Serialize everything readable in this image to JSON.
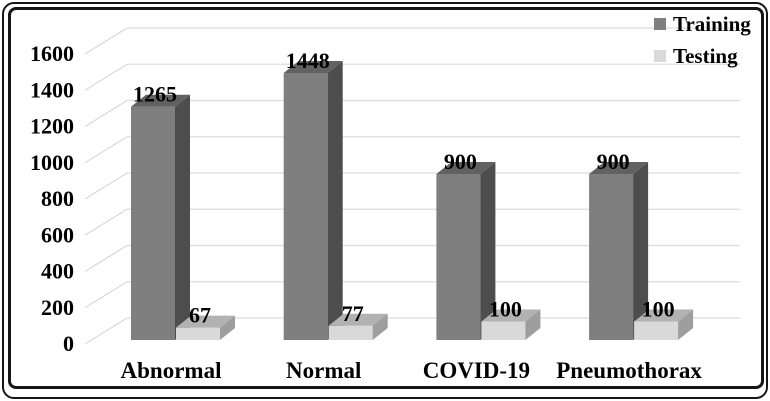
{
  "chart_data": {
    "type": "bar",
    "style": "3d-column",
    "categories": [
      "Abnormal",
      "Normal",
      "COVID-19",
      "Pneumothorax"
    ],
    "series": [
      {
        "name": "Training",
        "values": [
          1265,
          1448,
          900,
          900
        ],
        "front_color": "#7f7f7f",
        "top_color": "#616161",
        "side_color": "#4d4d4d"
      },
      {
        "name": "Testing",
        "values": [
          67,
          77,
          100,
          100
        ],
        "front_color": "#d9d9d9",
        "top_color": "#b2b2b2",
        "side_color": "#9e9e9e"
      }
    ],
    "data_labels_shown": true,
    "yticks": [
      0,
      200,
      400,
      600,
      800,
      1000,
      1200,
      1400,
      1600
    ],
    "ylim": [
      0,
      1600
    ],
    "title": "",
    "xlabel": "",
    "ylabel": "",
    "grid": true,
    "legend_position": "top-right",
    "gridline_color": "#dcdcdc",
    "depth_line_color": "#cfcfcf",
    "background_color": "#ffffff",
    "frame_color": "#161616",
    "text_color": "#000000"
  }
}
